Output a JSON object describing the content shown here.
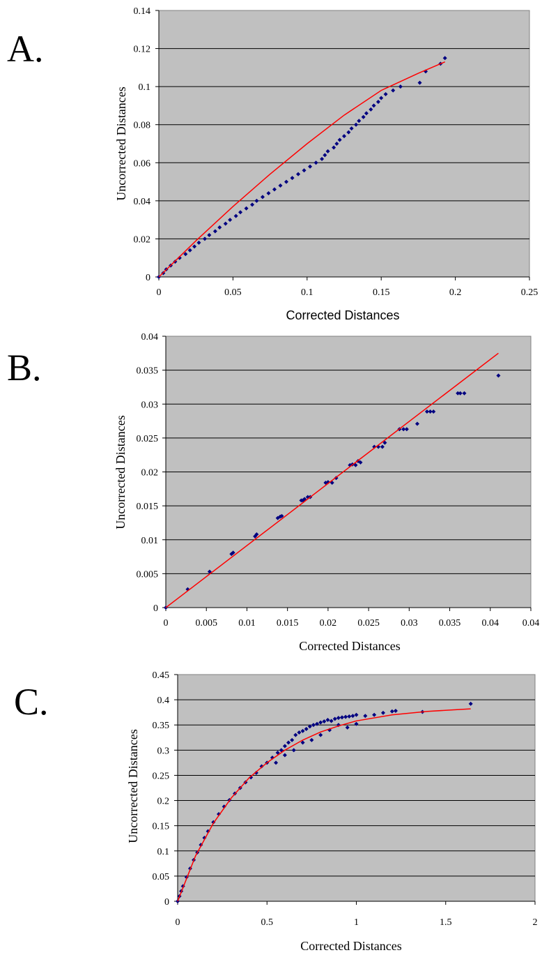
{
  "colors": {
    "plot_bg": "#c0c0c0",
    "gridline": "#000000",
    "points": "#000080",
    "fit_line": "#ff0000"
  },
  "chart_data": [
    {
      "panel_label": "A.",
      "type": "scatter",
      "xlabel": "Corrected Distances",
      "ylabel": "Uncorrected Distances",
      "xlim": [
        0,
        0.25
      ],
      "ylim": [
        0,
        0.14
      ],
      "x_ticks": [
        "0",
        "0.05",
        "0.1",
        "0.15",
        "0.2",
        "0.25"
      ],
      "y_ticks": [
        "0",
        "0.02",
        "0.04",
        "0.06",
        "0.08",
        "0.1",
        "0.12",
        "0.14"
      ],
      "grid": "horizontal",
      "series": [
        {
          "kind": "points",
          "x": [
            0,
            0.003,
            0.005,
            0.008,
            0.011,
            0.014,
            0.018,
            0.021,
            0.024,
            0.027,
            0.031,
            0.034,
            0.038,
            0.041,
            0.045,
            0.048,
            0.052,
            0.055,
            0.059,
            0.063,
            0.066,
            0.07,
            0.074,
            0.078,
            0.082,
            0.086,
            0.09,
            0.094,
            0.098,
            0.102,
            0.106,
            0.11,
            0.112,
            0.114,
            0.118,
            0.12,
            0.122,
            0.125,
            0.128,
            0.13,
            0.133,
            0.135,
            0.138,
            0.14,
            0.143,
            0.145,
            0.148,
            0.15,
            0.153,
            0.158,
            0.163,
            0.176,
            0.18,
            0.19,
            0.193
          ],
          "y": [
            0,
            0.002,
            0.004,
            0.006,
            0.008,
            0.01,
            0.012,
            0.014,
            0.016,
            0.018,
            0.02,
            0.022,
            0.024,
            0.026,
            0.028,
            0.03,
            0.032,
            0.034,
            0.036,
            0.038,
            0.04,
            0.042,
            0.044,
            0.046,
            0.048,
            0.05,
            0.052,
            0.054,
            0.056,
            0.058,
            0.06,
            0.062,
            0.064,
            0.066,
            0.068,
            0.07,
            0.072,
            0.074,
            0.076,
            0.078,
            0.08,
            0.082,
            0.084,
            0.086,
            0.088,
            0.09,
            0.092,
            0.094,
            0.096,
            0.098,
            0.1,
            0.102,
            0.108,
            0.112,
            0.115
          ]
        },
        {
          "kind": "line",
          "x": [
            0,
            0.025,
            0.05,
            0.075,
            0.1,
            0.125,
            0.15,
            0.175,
            0.193
          ],
          "y": [
            0,
            0.019,
            0.037,
            0.054,
            0.07,
            0.085,
            0.098,
            0.107,
            0.113
          ]
        }
      ]
    },
    {
      "panel_label": "B.",
      "type": "scatter",
      "xlabel": "Corrected Distances",
      "ylabel": "Uncorrected Distances",
      "xlim": [
        0,
        0.045
      ],
      "ylim": [
        0,
        0.04
      ],
      "x_ticks": [
        "0",
        "0.005",
        "0.01",
        "0.015",
        "0.02",
        "0.025",
        "0.03",
        "0.035",
        "0.04",
        "0.04"
      ],
      "y_ticks": [
        "0",
        "0.005",
        "0.01",
        "0.015",
        "0.02",
        "0.025",
        "0.03",
        "0.035",
        "0.04"
      ],
      "grid": "horizontal",
      "series": [
        {
          "kind": "points",
          "x": [
            0,
            0.0027,
            0.0054,
            0.0081,
            0.0083,
            0.011,
            0.0112,
            0.0138,
            0.0141,
            0.0143,
            0.0167,
            0.0169,
            0.0171,
            0.0175,
            0.0178,
            0.0197,
            0.02,
            0.0205,
            0.021,
            0.0227,
            0.023,
            0.0234,
            0.0237,
            0.024,
            0.0257,
            0.0262,
            0.0267,
            0.027,
            0.0288,
            0.0293,
            0.0297,
            0.031,
            0.0322,
            0.0326,
            0.033,
            0.036,
            0.0363,
            0.0368,
            0.041
          ],
          "y": [
            0,
            0.0027,
            0.0053,
            0.0079,
            0.0081,
            0.0105,
            0.0108,
            0.0132,
            0.0134,
            0.0135,
            0.0158,
            0.0158,
            0.016,
            0.0163,
            0.0163,
            0.0184,
            0.0185,
            0.0184,
            0.0191,
            0.021,
            0.0211,
            0.021,
            0.0216,
            0.0214,
            0.0237,
            0.0237,
            0.0237,
            0.0243,
            0.0263,
            0.0263,
            0.0263,
            0.0271,
            0.0289,
            0.0289,
            0.0289,
            0.0316,
            0.0316,
            0.0316,
            0.0342
          ]
        },
        {
          "kind": "line",
          "x": [
            0,
            0.041
          ],
          "y": [
            0,
            0.0375
          ]
        }
      ]
    },
    {
      "panel_label": "C.",
      "type": "scatter",
      "xlabel": "Corrected Distances",
      "ylabel": "Uncorrected Distances",
      "xlim": [
        0,
        2
      ],
      "ylim": [
        0,
        0.45
      ],
      "x_ticks": [
        "0",
        "0.5",
        "1",
        "1.5",
        "2"
      ],
      "y_ticks": [
        "0",
        "0.05",
        "0.1",
        "0.15",
        "0.2",
        "0.25",
        "0.3",
        "0.35",
        "0.4",
        "0.45"
      ],
      "grid": "horizontal",
      "series": [
        {
          "kind": "points",
          "x": [
            0,
            0.01,
            0.02,
            0.03,
            0.05,
            0.07,
            0.09,
            0.11,
            0.13,
            0.15,
            0.17,
            0.2,
            0.23,
            0.26,
            0.29,
            0.32,
            0.35,
            0.38,
            0.41,
            0.44,
            0.47,
            0.5,
            0.53,
            0.56,
            0.58,
            0.6,
            0.62,
            0.64,
            0.66,
            0.68,
            0.7,
            0.72,
            0.74,
            0.76,
            0.78,
            0.8,
            0.82,
            0.84,
            0.86,
            0.88,
            0.9,
            0.92,
            0.94,
            0.96,
            0.98,
            1.0,
            1.0,
            0.95,
            0.9,
            0.85,
            0.8,
            0.75,
            0.7,
            0.65,
            0.6,
            0.55,
            1.05,
            1.1,
            1.15,
            1.2,
            1.22,
            1.37,
            1.64
          ],
          "y": [
            0,
            0.01,
            0.02,
            0.03,
            0.048,
            0.065,
            0.082,
            0.097,
            0.112,
            0.126,
            0.139,
            0.157,
            0.173,
            0.188,
            0.201,
            0.214,
            0.225,
            0.236,
            0.246,
            0.255,
            0.268,
            0.275,
            0.285,
            0.295,
            0.3,
            0.308,
            0.315,
            0.32,
            0.33,
            0.335,
            0.338,
            0.342,
            0.347,
            0.35,
            0.352,
            0.355,
            0.357,
            0.36,
            0.358,
            0.362,
            0.364,
            0.365,
            0.366,
            0.367,
            0.368,
            0.37,
            0.352,
            0.345,
            0.35,
            0.34,
            0.33,
            0.32,
            0.315,
            0.3,
            0.29,
            0.275,
            0.368,
            0.37,
            0.374,
            0.377,
            0.378,
            0.376,
            0.392
          ]
        },
        {
          "kind": "line",
          "x": [
            0,
            0.1,
            0.2,
            0.3,
            0.4,
            0.5,
            0.6,
            0.7,
            0.8,
            0.9,
            1.0,
            1.2,
            1.4,
            1.64
          ],
          "y": [
            0,
            0.09,
            0.155,
            0.205,
            0.245,
            0.275,
            0.3,
            0.32,
            0.336,
            0.348,
            0.358,
            0.37,
            0.377,
            0.382
          ]
        }
      ]
    }
  ]
}
